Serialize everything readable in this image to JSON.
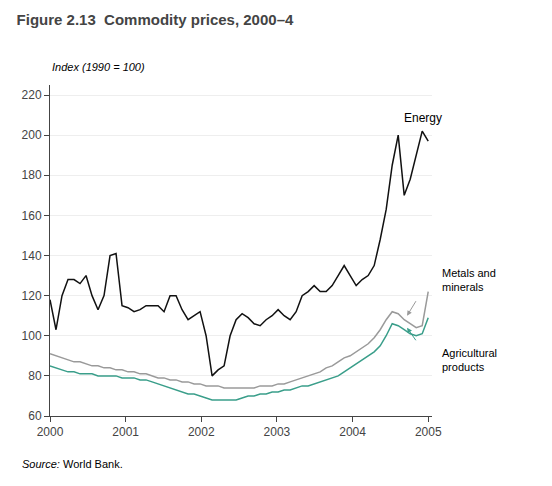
{
  "chart_data": {
    "type": "line",
    "title": "Figure 2.13  Commodity prices, 2000–4",
    "ylabel": "Index (1990 = 100)",
    "source": "Source: World Bank.",
    "annotations": [
      "Energy",
      "Metals and\nminerals",
      "Agricultural\nproducts"
    ],
    "x": [
      2000,
      2000.0794,
      2000.1587,
      2000.2381,
      2000.3175,
      2000.3968,
      2000.4762,
      2000.5556,
      2000.6349,
      2000.7143,
      2000.7937,
      2000.873,
      2000.9524,
      2001.0317,
      2001.1111,
      2001.1905,
      2001.2698,
      2001.3492,
      2001.4286,
      2001.5079,
      2001.5873,
      2001.6667,
      2001.746,
      2001.8254,
      2001.9048,
      2001.9841,
      2002.0635,
      2002.1429,
      2002.2222,
      2002.3016,
      2002.381,
      2002.4603,
      2002.5397,
      2002.619,
      2002.6984,
      2002.7778,
      2002.8571,
      2002.9365,
      2003.0159,
      2003.0952,
      2003.1746,
      2003.254,
      2003.3333,
      2003.4127,
      2003.4921,
      2003.5714,
      2003.6508,
      2003.7302,
      2003.8095,
      2003.8889,
      2003.9683,
      2004.0476,
      2004.127,
      2004.2063,
      2004.2857,
      2004.3651,
      2004.4444,
      2004.5238,
      2004.6032,
      2004.6825,
      2004.7619,
      2004.8413,
      2004.9206,
      2005
    ],
    "series": [
      {
        "color": "#111111",
        "values": [
          118,
          103,
          120,
          128,
          128,
          126,
          130,
          120,
          113,
          120,
          140,
          141,
          115,
          114,
          112,
          113,
          115,
          115,
          115,
          112,
          120,
          120,
          113,
          108,
          110,
          112,
          100,
          80,
          83,
          85,
          100,
          108,
          111,
          109,
          106,
          105,
          108,
          110,
          113,
          110,
          108,
          112,
          120,
          122,
          125,
          122,
          122,
          125,
          130,
          135,
          130,
          125,
          128,
          130,
          135,
          148,
          163,
          185,
          200,
          170,
          178,
          190,
          202,
          197
        ]
      },
      {
        "color": "#9a9a9a",
        "values": [
          91,
          90,
          89,
          88,
          87,
          87,
          86,
          85,
          85,
          84,
          84,
          83,
          83,
          82,
          82,
          81,
          81,
          80,
          79,
          79,
          78,
          78,
          77,
          77,
          76,
          76,
          75,
          75,
          75,
          74,
          74,
          74,
          74,
          74,
          74,
          75,
          75,
          75,
          76,
          76,
          77,
          78,
          79,
          80,
          81,
          82,
          84,
          85,
          87,
          89,
          90,
          92,
          94,
          96,
          99,
          103,
          108,
          112,
          111,
          108,
          106,
          104,
          105,
          122
        ]
      },
      {
        "color": "#3a9e8a",
        "values": [
          85,
          84,
          83,
          82,
          82,
          81,
          81,
          81,
          80,
          80,
          80,
          80,
          79,
          79,
          79,
          78,
          78,
          77,
          76,
          75,
          74,
          73,
          72,
          71,
          71,
          70,
          69,
          68,
          68,
          68,
          68,
          68,
          69,
          70,
          70,
          71,
          71,
          72,
          72,
          73,
          73,
          74,
          75,
          75,
          76,
          77,
          78,
          79,
          80,
          82,
          84,
          86,
          88,
          90,
          92,
          95,
          100,
          106,
          105,
          103,
          101,
          100,
          101,
          109
        ]
      }
    ],
    "xlim": [
      2000,
      2005.05
    ],
    "xticks": [
      2000,
      2001,
      2002,
      2003,
      2004,
      2005
    ],
    "ylim": [
      60,
      225
    ],
    "yticks": [
      60,
      80,
      100,
      120,
      140,
      160,
      180,
      200,
      220
    ],
    "grid": true
  }
}
